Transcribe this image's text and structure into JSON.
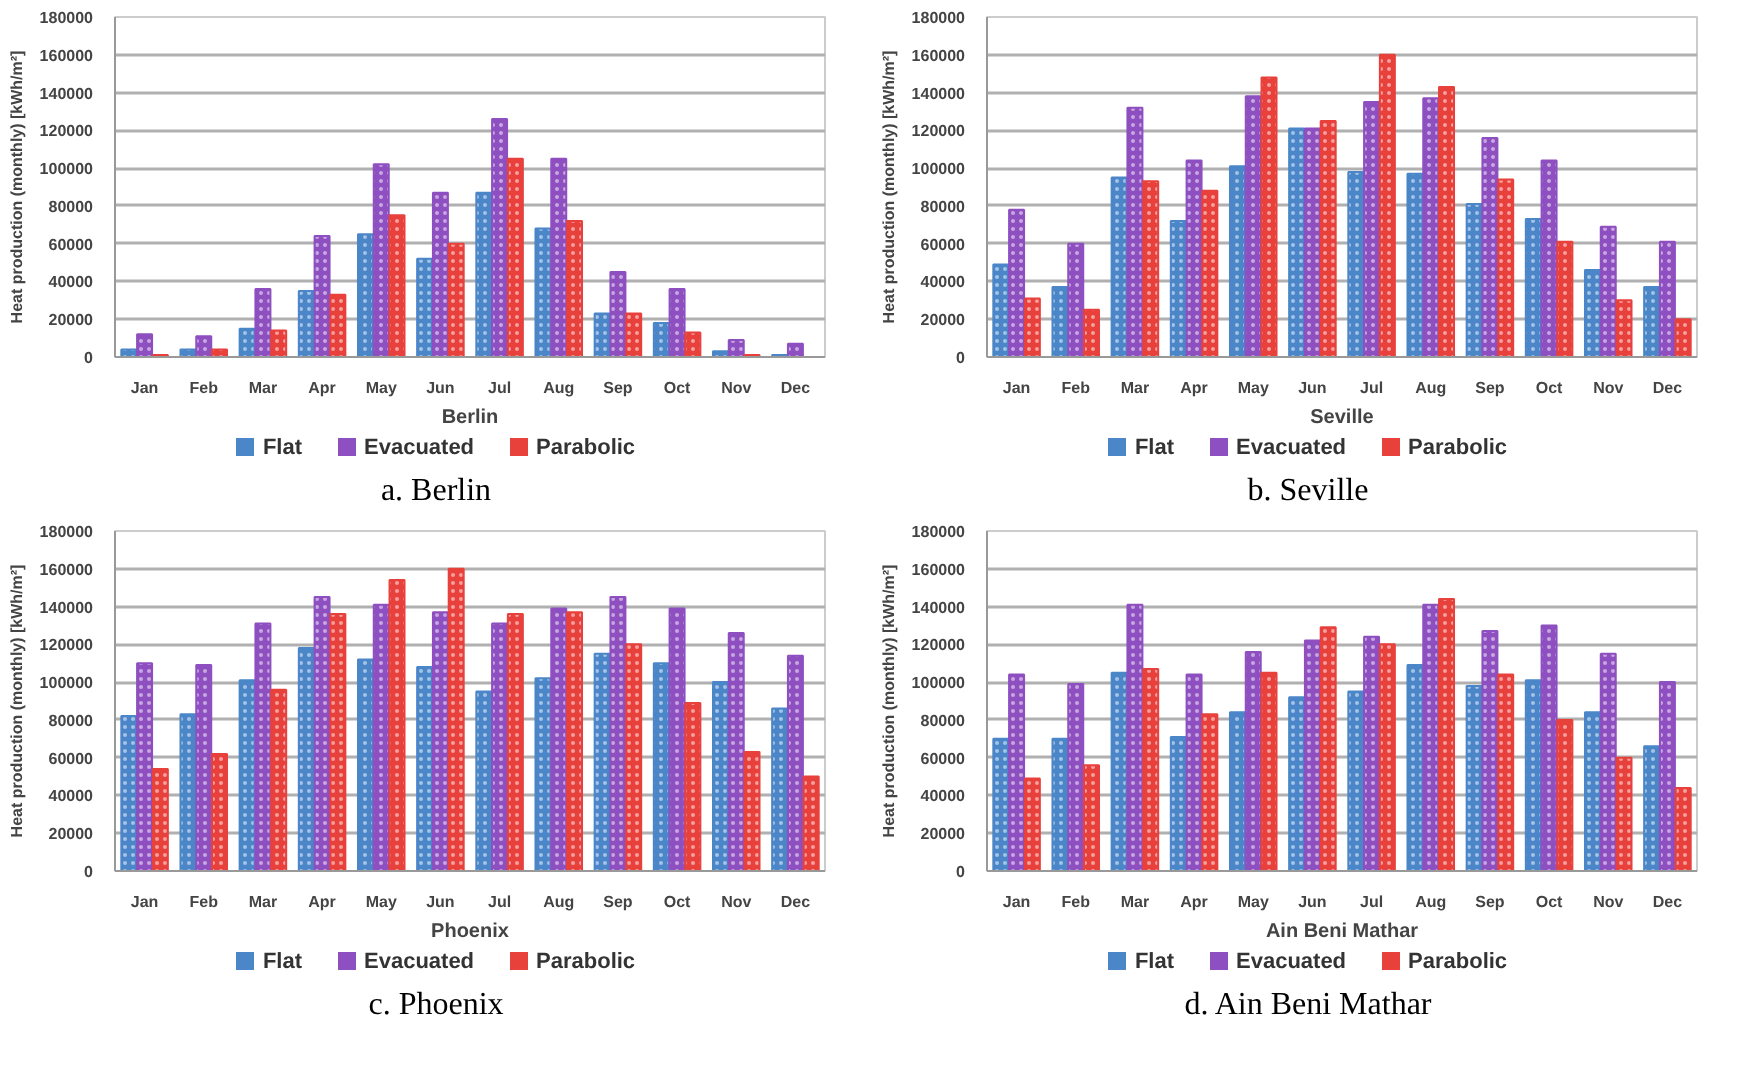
{
  "chart_data": [
    {
      "type": "bar",
      "xlabel": "Berlin",
      "ylabel": "Heat production (monthly) [kWh/m²]",
      "annotations": [
        "a. Berlin"
      ],
      "categories": [
        "Jan",
        "Feb",
        "Mar",
        "Apr",
        "May",
        "Jun",
        "Jul",
        "Aug",
        "Sep",
        "Oct",
        "Nov",
        "Dec"
      ],
      "ylim": [
        0,
        180000
      ],
      "yticks": [
        0,
        20000,
        40000,
        60000,
        80000,
        100000,
        120000,
        140000,
        160000,
        180000
      ],
      "grid": "y",
      "legend": "bottom",
      "series": [
        {
          "name": "Flat",
          "color": "#4a86c8",
          "values": [
            4000,
            4000,
            15000,
            35000,
            65000,
            52000,
            87000,
            68000,
            23000,
            18000,
            3000,
            1000
          ]
        },
        {
          "name": "Evacuated",
          "color": "#8e4fc0",
          "values": [
            12000,
            11000,
            36000,
            64000,
            102000,
            87000,
            126000,
            105000,
            45000,
            36000,
            9000,
            7000
          ]
        },
        {
          "name": "Parabolic",
          "color": "#e8413c",
          "values": [
            1000,
            4000,
            14000,
            33000,
            75000,
            60000,
            105000,
            72000,
            23000,
            13000,
            1000,
            0
          ]
        }
      ]
    },
    {
      "type": "bar",
      "xlabel": "Seville",
      "ylabel": "Heat production (monthly) [kWh/m²]",
      "annotations": [
        "b. Seville"
      ],
      "categories": [
        "Jan",
        "Feb",
        "Mar",
        "Apr",
        "May",
        "Jun",
        "Jul",
        "Aug",
        "Sep",
        "Oct",
        "Nov",
        "Dec"
      ],
      "ylim": [
        0,
        180000
      ],
      "yticks": [
        0,
        20000,
        40000,
        60000,
        80000,
        100000,
        120000,
        140000,
        160000,
        180000
      ],
      "grid": "y",
      "legend": "bottom",
      "series": [
        {
          "name": "Flat",
          "color": "#4a86c8",
          "values": [
            49000,
            37000,
            95000,
            72000,
            101000,
            121000,
            98000,
            97000,
            81000,
            73000,
            46000,
            37000
          ]
        },
        {
          "name": "Evacuated",
          "color": "#8e4fc0",
          "values": [
            78000,
            60000,
            132000,
            104000,
            138000,
            121000,
            135000,
            137000,
            116000,
            104000,
            69000,
            61000
          ]
        },
        {
          "name": "Parabolic",
          "color": "#e8413c",
          "values": [
            31000,
            25000,
            93000,
            88000,
            148000,
            125000,
            160000,
            143000,
            94000,
            61000,
            30000,
            20000
          ]
        }
      ]
    },
    {
      "type": "bar",
      "xlabel": "Phoenix",
      "ylabel": "Heat production (monthly) [kWh/m²]",
      "annotations": [
        "c. Phoenix"
      ],
      "categories": [
        "Jan",
        "Feb",
        "Mar",
        "Apr",
        "May",
        "Jun",
        "Jul",
        "Aug",
        "Sep",
        "Oct",
        "Nov",
        "Dec"
      ],
      "ylim": [
        0,
        180000
      ],
      "yticks": [
        0,
        20000,
        40000,
        60000,
        80000,
        100000,
        120000,
        140000,
        160000,
        180000
      ],
      "grid": "y",
      "legend": "bottom",
      "series": [
        {
          "name": "Flat",
          "color": "#4a86c8",
          "values": [
            82000,
            83000,
            101000,
            118000,
            112000,
            108000,
            95000,
            102000,
            115000,
            110000,
            100000,
            86000
          ]
        },
        {
          "name": "Evacuated",
          "color": "#8e4fc0",
          "values": [
            110000,
            109000,
            131000,
            145000,
            141000,
            137000,
            131000,
            139000,
            145000,
            139000,
            126000,
            114000
          ]
        },
        {
          "name": "Parabolic",
          "color": "#e8413c",
          "values": [
            54000,
            62000,
            96000,
            136000,
            154000,
            160000,
            136000,
            137000,
            120000,
            89000,
            63000,
            50000
          ]
        }
      ]
    },
    {
      "type": "bar",
      "xlabel": "Ain Beni Mathar",
      "ylabel": "Heat production (monthly) [kWh/m²]",
      "annotations": [
        "d. Ain Beni Mathar"
      ],
      "categories": [
        "Jan",
        "Feb",
        "Mar",
        "Apr",
        "May",
        "Jun",
        "Jul",
        "Aug",
        "Sep",
        "Oct",
        "Nov",
        "Dec"
      ],
      "ylim": [
        0,
        180000
      ],
      "yticks": [
        0,
        20000,
        40000,
        60000,
        80000,
        100000,
        120000,
        140000,
        160000,
        180000
      ],
      "grid": "y",
      "legend": "bottom",
      "series": [
        {
          "name": "Flat",
          "color": "#4a86c8",
          "values": [
            70000,
            70000,
            105000,
            71000,
            84000,
            92000,
            95000,
            109000,
            98000,
            101000,
            84000,
            66000
          ]
        },
        {
          "name": "Evacuated",
          "color": "#8e4fc0",
          "values": [
            104000,
            99000,
            141000,
            104000,
            116000,
            122000,
            124000,
            141000,
            127000,
            130000,
            115000,
            100000
          ]
        },
        {
          "name": "Parabolic",
          "color": "#e8413c",
          "values": [
            49000,
            56000,
            107000,
            83000,
            105000,
            129000,
            120000,
            144000,
            104000,
            80000,
            60000,
            44000
          ]
        }
      ]
    }
  ]
}
